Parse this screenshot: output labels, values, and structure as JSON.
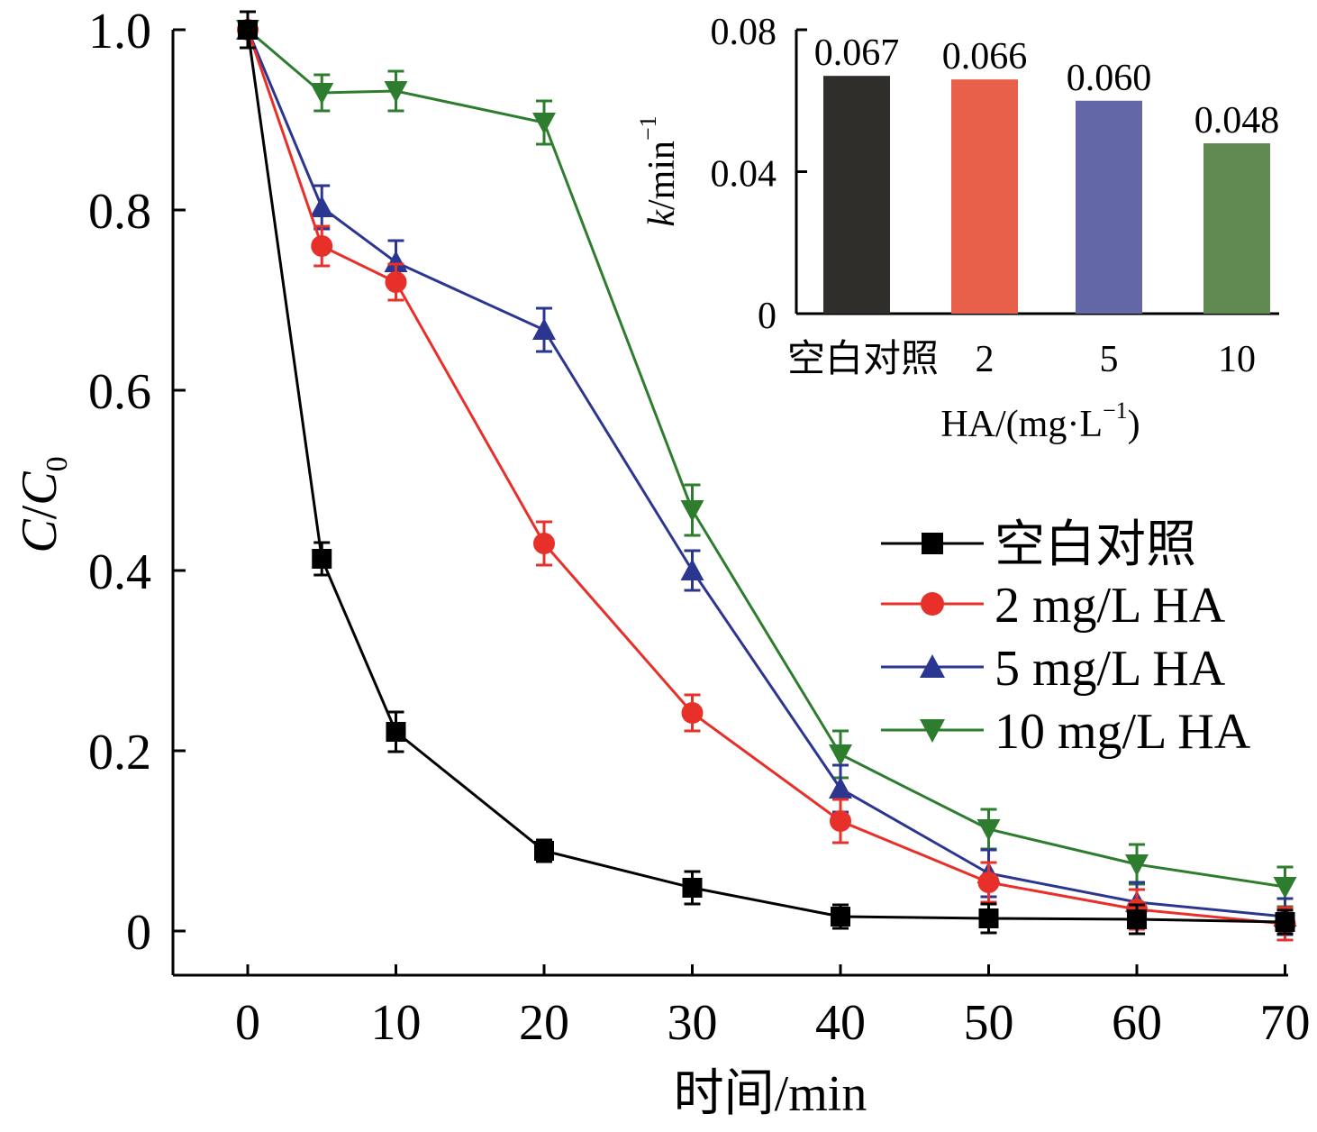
{
  "chart_data": [
    {
      "type": "line",
      "xlabel": "时间/min",
      "ylabel_main": "C",
      "ylabel_sub": "0",
      "xlim": [
        -5,
        70
      ],
      "ylim": [
        -0.05,
        1.0
      ],
      "xticks": [
        0,
        10,
        20,
        30,
        40,
        50,
        60,
        70
      ],
      "yticks": [
        0,
        0.2,
        0.4,
        0.6,
        0.8,
        1.0
      ],
      "ytick_labels": [
        "0",
        "0.2",
        "0.4",
        "0.6",
        "0.8",
        "1.0"
      ],
      "legend_position": "right",
      "x": [
        0,
        5,
        10,
        20,
        30,
        40,
        50,
        60,
        70
      ],
      "series": [
        {
          "name": "空白对照",
          "marker": "square",
          "color": "#000000",
          "values": [
            1.0,
            0.413,
            0.221,
            0.089,
            0.048,
            0.016,
            0.014,
            0.013,
            0.01
          ],
          "errors": [
            0.02,
            0.018,
            0.022,
            0.012,
            0.018,
            0.013,
            0.016,
            0.016,
            0.013
          ]
        },
        {
          "name": "2 mg/L HA",
          "marker": "circle",
          "color": "#e8302a",
          "values": [
            1.0,
            0.76,
            0.72,
            0.43,
            0.242,
            0.122,
            0.054,
            0.024,
            0.008
          ],
          "errors": [
            0.02,
            0.022,
            0.02,
            0.024,
            0.02,
            0.024,
            0.022,
            0.022,
            0.018
          ]
        },
        {
          "name": "5 mg/L HA",
          "marker": "triangle-up",
          "color": "#2b3690",
          "values": [
            1.0,
            0.803,
            0.742,
            0.667,
            0.4,
            0.158,
            0.064,
            0.032,
            0.016
          ],
          "errors": [
            0.02,
            0.024,
            0.024,
            0.024,
            0.022,
            0.026,
            0.026,
            0.022,
            0.02
          ]
        },
        {
          "name": "10 mg/L HA",
          "marker": "triangle-down",
          "color": "#2e7d2e",
          "values": [
            1.0,
            0.93,
            0.932,
            0.897,
            0.467,
            0.196,
            0.113,
            0.074,
            0.049
          ],
          "errors": [
            0.02,
            0.02,
            0.022,
            0.024,
            0.028,
            0.026,
            0.022,
            0.022,
            0.022
          ]
        }
      ]
    },
    {
      "type": "bar",
      "categories": [
        "空白对照",
        "2",
        "5",
        "10"
      ],
      "values": [
        0.067,
        0.066,
        0.06,
        0.048
      ],
      "value_labels": [
        "0.067",
        "0.066",
        "0.060",
        "0.048"
      ],
      "colors": [
        "#2f2e2a",
        "#e9604a",
        "#6367a6",
        "#618a52"
      ],
      "ylim": [
        0,
        0.08
      ],
      "yticks": [
        0,
        0.04,
        0.08
      ],
      "ytick_labels": [
        "0",
        "0.04",
        "0.08"
      ],
      "xlabel_main": "HA/(mg·L",
      "xlabel_sup": "−1",
      "xlabel_close": ")",
      "ylabel_italic": "k",
      "ylabel_main": "/min",
      "ylabel_sup": "−1"
    }
  ]
}
